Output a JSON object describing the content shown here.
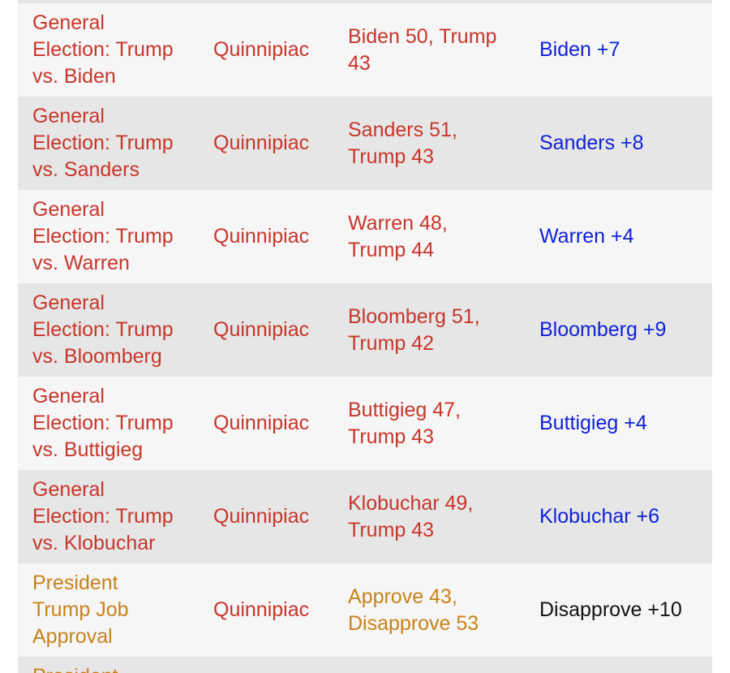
{
  "colors": {
    "race_text": "#c8362a",
    "approval_text": "#c9821a",
    "democrat_spread": "#1022d6",
    "neutral_spread": "#111111",
    "row_light": "#f6f6f6",
    "row_dark": "#e6e6e6"
  },
  "rows": [
    {
      "race_lines": [
        "General",
        "Election: Trump",
        "vs. Biden"
      ],
      "pollster": "Quinnipiac",
      "results_lines": [
        "Biden 50, Trump",
        "43"
      ],
      "spread": "Biden +7"
    },
    {
      "race_lines": [
        "General",
        "Election: Trump",
        "vs. Sanders"
      ],
      "pollster": "Quinnipiac",
      "results_lines": [
        "Sanders 51,",
        "Trump 43"
      ],
      "spread": "Sanders +8"
    },
    {
      "race_lines": [
        "General",
        "Election: Trump",
        "vs. Warren"
      ],
      "pollster": "Quinnipiac",
      "results_lines": [
        "Warren 48,",
        "Trump 44"
      ],
      "spread": "Warren +4"
    },
    {
      "race_lines": [
        "General",
        "Election: Trump",
        "vs. Bloomberg"
      ],
      "pollster": "Quinnipiac",
      "results_lines": [
        "Bloomberg 51,",
        "Trump 42"
      ],
      "spread": "Bloomberg +9"
    },
    {
      "race_lines": [
        "General",
        "Election: Trump",
        "vs. Buttigieg"
      ],
      "pollster": "Quinnipiac",
      "results_lines": [
        "Buttigieg 47,",
        "Trump 43"
      ],
      "spread": "Buttigieg +4"
    },
    {
      "race_lines": [
        "General",
        "Election: Trump",
        "vs. Klobuchar"
      ],
      "pollster": "Quinnipiac",
      "results_lines": [
        "Klobuchar 49,",
        "Trump 43"
      ],
      "spread": "Klobuchar +6"
    },
    {
      "race_lines": [
        "President",
        "Trump Job",
        "Approval"
      ],
      "pollster": "Quinnipiac",
      "results_lines": [
        "Approve 43,",
        "Disapprove 53"
      ],
      "spread": "Disapprove +10"
    }
  ],
  "partial_row": {
    "race_first_line": "President"
  }
}
